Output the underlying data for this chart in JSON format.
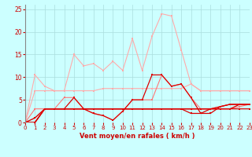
{
  "x": [
    0,
    1,
    2,
    3,
    4,
    5,
    6,
    7,
    8,
    9,
    10,
    11,
    12,
    13,
    14,
    15,
    16,
    17,
    18,
    19,
    20,
    21,
    22,
    23
  ],
  "series": [
    {
      "name": "rafales_light_top",
      "color": "#ffaaaa",
      "lw": 0.8,
      "marker": "s",
      "ms": 2.0,
      "y": [
        0,
        10.5,
        8.0,
        7.0,
        7.0,
        15.0,
        12.5,
        13.0,
        11.5,
        13.5,
        11.5,
        18.5,
        11.5,
        19.0,
        24.0,
        23.5,
        16.0,
        8.5,
        7.0,
        7.0,
        7.0,
        7.0,
        7.0,
        7.0
      ]
    },
    {
      "name": "rafales_light_mid",
      "color": "#ffaaaa",
      "lw": 0.8,
      "marker": "s",
      "ms": 2.0,
      "y": [
        0,
        7.0,
        7.0,
        7.0,
        7.0,
        7.0,
        7.0,
        7.0,
        7.5,
        7.5,
        7.5,
        7.5,
        7.5,
        7.5,
        7.5,
        7.5,
        7.5,
        8.5,
        7.0,
        7.0,
        7.0,
        7.0,
        7.0,
        7.0
      ]
    },
    {
      "name": "vent_medium_upper",
      "color": "#ff7777",
      "lw": 0.8,
      "marker": "s",
      "ms": 2.0,
      "y": [
        0,
        3.0,
        3.0,
        3.0,
        5.5,
        5.5,
        3.0,
        2.0,
        1.5,
        0.5,
        2.5,
        5.0,
        5.0,
        5.0,
        10.5,
        8.0,
        8.5,
        5.5,
        3.0,
        3.0,
        3.5,
        4.0,
        4.0,
        4.0
      ]
    },
    {
      "name": "vent_medium_lower",
      "color": "#ff7777",
      "lw": 0.8,
      "marker": "s",
      "ms": 2.0,
      "y": [
        0,
        1.0,
        3.0,
        3.0,
        3.0,
        3.0,
        3.0,
        3.0,
        3.0,
        3.0,
        3.0,
        3.0,
        3.0,
        3.0,
        3.0,
        3.0,
        3.0,
        3.0,
        3.0,
        3.0,
        3.0,
        3.0,
        3.5,
        4.0
      ]
    },
    {
      "name": "vent_dark_upper",
      "color": "#dd0000",
      "lw": 0.9,
      "marker": "s",
      "ms": 2.0,
      "y": [
        0,
        1.0,
        3.0,
        3.0,
        3.0,
        5.5,
        3.0,
        2.0,
        1.5,
        0.5,
        2.5,
        5.0,
        5.0,
        10.5,
        10.5,
        8.0,
        8.5,
        5.5,
        2.0,
        3.0,
        3.0,
        3.0,
        4.0,
        4.0
      ]
    },
    {
      "name": "vent_dark_lower1",
      "color": "#dd0000",
      "lw": 0.9,
      "marker": "s",
      "ms": 2.0,
      "y": [
        0,
        0,
        3.0,
        3.0,
        3.0,
        3.0,
        3.0,
        3.0,
        3.0,
        3.0,
        3.0,
        3.0,
        3.0,
        3.0,
        3.0,
        3.0,
        3.0,
        3.0,
        3.0,
        3.0,
        3.5,
        4.0,
        4.0,
        4.0
      ]
    },
    {
      "name": "vent_dark_lower2",
      "color": "#dd0000",
      "lw": 0.9,
      "marker": "s",
      "ms": 2.0,
      "y": [
        0,
        0,
        3.0,
        3.0,
        3.0,
        3.0,
        3.0,
        3.0,
        3.0,
        3.0,
        3.0,
        3.0,
        3.0,
        3.0,
        3.0,
        3.0,
        3.0,
        3.0,
        3.0,
        3.0,
        3.0,
        3.0,
        3.0,
        3.0
      ]
    },
    {
      "name": "vent_dark_lower3",
      "color": "#dd0000",
      "lw": 0.9,
      "marker": "s",
      "ms": 2.0,
      "y": [
        0,
        0,
        3.0,
        3.0,
        3.0,
        3.0,
        3.0,
        3.0,
        3.0,
        3.0,
        3.0,
        3.0,
        3.0,
        3.0,
        3.0,
        3.0,
        3.0,
        2.0,
        2.0,
        2.0,
        3.5,
        4.0,
        4.0,
        4.0
      ]
    }
  ],
  "xlabel": "Vent moyen/en rafales ( km/h )",
  "ylim": [
    0,
    26
  ],
  "xlim": [
    0,
    23
  ],
  "yticks": [
    0,
    5,
    10,
    15,
    20,
    25
  ],
  "xticks": [
    0,
    1,
    2,
    3,
    4,
    5,
    6,
    7,
    8,
    9,
    10,
    11,
    12,
    13,
    14,
    15,
    16,
    17,
    18,
    19,
    20,
    21,
    22,
    23
  ],
  "bg_color": "#ccffff",
  "grid_color": "#aadddd",
  "xlabel_color": "#cc0000",
  "tick_color": "#cc0000"
}
